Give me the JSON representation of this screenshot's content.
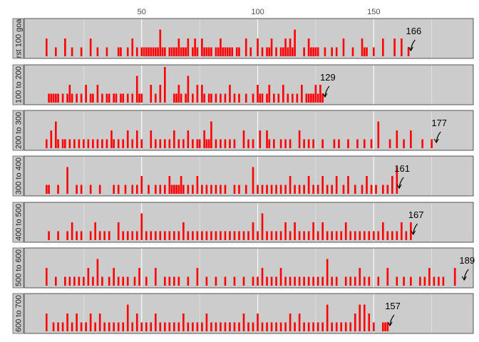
{
  "chart_data": {
    "type": "bar",
    "title": "",
    "xlabel": "",
    "ylabel": "",
    "x_range": [
      0,
      192
    ],
    "x_ticks": [
      {
        "value": 50,
        "label": "50"
      },
      {
        "value": 100,
        "label": "100"
      },
      {
        "value": 150,
        "label": "150"
      }
    ],
    "grid": true,
    "colors": {
      "bar": "#ff0000",
      "panel": "#cccccc",
      "grid": "#ffffff",
      "strip": "#cccccc",
      "arrow": "#000000"
    },
    "panels": [
      {
        "strip_label": "rst 100 goa",
        "annotation": {
          "label": "166",
          "x": 166
        },
        "x": [
          9,
          13,
          17,
          20,
          24,
          28,
          31,
          35,
          40,
          41,
          44,
          46,
          48,
          50,
          51,
          52,
          53,
          54,
          55,
          56,
          57,
          58,
          59,
          60,
          62,
          63,
          64,
          65,
          66,
          67,
          68,
          69,
          70,
          72,
          73,
          74,
          76,
          77,
          78,
          79,
          80,
          82,
          83,
          84,
          85,
          86,
          87,
          88,
          89,
          91,
          92,
          95,
          97,
          100,
          102,
          104,
          105,
          106,
          108,
          110,
          111,
          112,
          113,
          114,
          115,
          116,
          120,
          122,
          123,
          124,
          125,
          126,
          129,
          132,
          134,
          137,
          141,
          145,
          146,
          147,
          150,
          154,
          159,
          162,
          165
        ],
        "values": [
          4,
          2,
          4,
          2,
          2,
          4,
          2,
          2,
          2,
          2,
          2,
          4,
          2,
          2,
          2,
          2,
          2,
          2,
          2,
          2,
          2,
          6,
          2,
          2,
          2,
          2,
          2,
          2,
          4,
          2,
          2,
          2,
          4,
          2,
          4,
          2,
          4,
          2,
          2,
          2,
          2,
          2,
          2,
          4,
          2,
          2,
          2,
          2,
          2,
          2,
          2,
          4,
          2,
          4,
          2,
          2,
          2,
          4,
          2,
          2,
          2,
          4,
          2,
          4,
          2,
          6,
          2,
          4,
          2,
          2,
          2,
          2,
          2,
          2,
          2,
          4,
          2,
          4,
          2,
          2,
          2,
          4,
          4,
          4,
          2
        ]
      },
      {
        "strip_label": "100 to 200",
        "annotation": {
          "label": "129",
          "x": 129
        },
        "x": [
          10,
          11,
          12,
          13,
          14,
          16,
          18,
          19,
          20,
          22,
          24,
          26,
          28,
          29,
          31,
          33,
          35,
          36,
          38,
          39,
          41,
          42,
          44,
          46,
          48,
          49,
          50,
          54,
          56,
          58,
          60,
          64,
          65,
          66,
          67,
          69,
          70,
          72,
          74,
          76,
          77,
          79,
          80,
          82,
          84,
          86,
          88,
          90,
          92,
          95,
          98,
          100,
          101,
          102,
          104,
          105,
          107,
          109,
          111,
          113,
          115,
          117,
          119,
          121,
          122,
          123,
          124,
          125,
          126,
          127,
          128
        ],
        "values": [
          2,
          2,
          2,
          2,
          2,
          2,
          2,
          4,
          2,
          2,
          2,
          4,
          2,
          2,
          4,
          2,
          2,
          2,
          2,
          2,
          2,
          2,
          2,
          2,
          6,
          2,
          2,
          4,
          2,
          4,
          8,
          2,
          2,
          4,
          2,
          2,
          6,
          2,
          4,
          4,
          2,
          2,
          2,
          2,
          2,
          2,
          4,
          2,
          2,
          2,
          2,
          4,
          2,
          2,
          2,
          4,
          2,
          2,
          4,
          2,
          2,
          2,
          4,
          2,
          2,
          2,
          2,
          4,
          2,
          4,
          2
        ]
      },
      {
        "strip_label": "200 to 300",
        "annotation": {
          "label": "177",
          "x": 177
        },
        "x": [
          9,
          11,
          13,
          14,
          16,
          17,
          19,
          21,
          23,
          25,
          27,
          29,
          31,
          33,
          35,
          37,
          38,
          40,
          42,
          44,
          46,
          48,
          50,
          54,
          56,
          58,
          60,
          62,
          64,
          66,
          68,
          70,
          72,
          74,
          75,
          77,
          78,
          79,
          80,
          82,
          84,
          86,
          88,
          90,
          94,
          96,
          98,
          101,
          104,
          105,
          107,
          110,
          112,
          114,
          118,
          120,
          122,
          124,
          128,
          133,
          135,
          139,
          143,
          146,
          149,
          152,
          157,
          160,
          163,
          166,
          171,
          175
        ],
        "values": [
          2,
          4,
          6,
          2,
          2,
          2,
          2,
          2,
          2,
          2,
          2,
          2,
          2,
          2,
          2,
          4,
          2,
          2,
          2,
          4,
          2,
          4,
          2,
          4,
          2,
          2,
          2,
          2,
          4,
          2,
          2,
          4,
          2,
          2,
          2,
          4,
          2,
          2,
          6,
          2,
          2,
          2,
          2,
          2,
          4,
          2,
          2,
          4,
          4,
          2,
          2,
          2,
          2,
          2,
          4,
          2,
          2,
          2,
          2,
          2,
          2,
          2,
          2,
          2,
          2,
          6,
          2,
          4,
          2,
          4,
          2,
          2
        ]
      },
      {
        "strip_label": "300 to 400",
        "annotation": {
          "label": "161",
          "x": 161
        },
        "x": [
          9,
          10,
          14,
          18,
          22,
          24,
          28,
          32,
          38,
          40,
          43,
          46,
          48,
          50,
          53,
          56,
          58,
          60,
          62,
          63,
          64,
          65,
          66,
          67,
          68,
          70,
          72,
          74,
          76,
          78,
          80,
          82,
          84,
          86,
          90,
          92,
          95,
          98,
          100,
          102,
          104,
          106,
          108,
          110,
          112,
          114,
          116,
          118,
          120,
          122,
          124,
          126,
          128,
          130,
          132,
          134,
          137,
          139,
          142,
          145,
          147,
          149,
          151,
          154,
          156,
          158,
          160
        ],
        "values": [
          2,
          2,
          2,
          6,
          2,
          2,
          2,
          2,
          2,
          2,
          2,
          2,
          2,
          4,
          2,
          2,
          2,
          2,
          4,
          2,
          2,
          2,
          2,
          4,
          2,
          2,
          2,
          4,
          2,
          2,
          2,
          2,
          2,
          2,
          2,
          2,
          2,
          6,
          2,
          2,
          2,
          2,
          2,
          2,
          2,
          4,
          2,
          2,
          2,
          4,
          2,
          2,
          4,
          2,
          2,
          4,
          2,
          4,
          2,
          2,
          4,
          2,
          2,
          2,
          2,
          4,
          6
        ]
      },
      {
        "strip_label": "400 to 500",
        "annotation": {
          "label": "167",
          "x": 167
        },
        "x": [
          10,
          14,
          18,
          20,
          22,
          24,
          28,
          30,
          32,
          34,
          36,
          40,
          42,
          44,
          46,
          48,
          50,
          52,
          54,
          56,
          58,
          60,
          62,
          64,
          66,
          68,
          70,
          72,
          74,
          76,
          78,
          80,
          82,
          84,
          86,
          88,
          90,
          92,
          94,
          96,
          98,
          100,
          102,
          104,
          106,
          108,
          110,
          112,
          114,
          116,
          118,
          120,
          122,
          124,
          126,
          128,
          130,
          132,
          134,
          136,
          138,
          140,
          142,
          144,
          146,
          148,
          150,
          152,
          154,
          156,
          158,
          160,
          162,
          164,
          166
        ],
        "values": [
          2,
          2,
          2,
          4,
          2,
          2,
          2,
          4,
          2,
          2,
          2,
          4,
          2,
          2,
          2,
          2,
          6,
          2,
          2,
          2,
          2,
          2,
          2,
          2,
          2,
          4,
          2,
          2,
          2,
          2,
          2,
          2,
          2,
          2,
          2,
          2,
          2,
          2,
          2,
          2,
          4,
          2,
          6,
          2,
          2,
          2,
          2,
          4,
          2,
          4,
          2,
          2,
          2,
          4,
          2,
          4,
          2,
          2,
          2,
          2,
          4,
          2,
          2,
          2,
          2,
          2,
          2,
          2,
          4,
          2,
          2,
          2,
          4,
          2,
          4
        ]
      },
      {
        "strip_label": "500 to 600",
        "annotation": {
          "label": "189",
          "x": 189
        },
        "x": [
          9,
          13,
          17,
          19,
          21,
          23,
          25,
          27,
          29,
          31,
          33,
          36,
          38,
          40,
          42,
          44,
          47,
          49,
          52,
          56,
          60,
          62,
          64,
          66,
          70,
          74,
          78,
          82,
          86,
          90,
          94,
          98,
          100,
          102,
          104,
          106,
          108,
          110,
          112,
          114,
          116,
          118,
          120,
          122,
          124,
          126,
          128,
          130,
          132,
          134,
          138,
          140,
          142,
          144,
          146,
          148,
          152,
          156,
          160,
          163,
          166,
          170,
          172,
          174,
          176,
          178,
          180,
          185
        ],
        "values": [
          4,
          2,
          2,
          2,
          2,
          2,
          2,
          4,
          2,
          6,
          2,
          2,
          4,
          2,
          2,
          2,
          2,
          4,
          2,
          4,
          2,
          2,
          2,
          2,
          2,
          4,
          2,
          2,
          2,
          2,
          2,
          2,
          2,
          4,
          2,
          2,
          2,
          4,
          2,
          2,
          2,
          2,
          2,
          2,
          2,
          2,
          2,
          6,
          2,
          2,
          2,
          2,
          2,
          4,
          2,
          2,
          2,
          4,
          2,
          2,
          2,
          2,
          2,
          4,
          2,
          2,
          2,
          4
        ]
      },
      {
        "strip_label": "600 to 700",
        "annotation": {
          "label": "157",
          "x": 157
        },
        "x": [
          9,
          12,
          14,
          16,
          18,
          20,
          22,
          24,
          26,
          28,
          30,
          32,
          34,
          36,
          38,
          40,
          42,
          44,
          46,
          48,
          50,
          52,
          54,
          56,
          58,
          60,
          62,
          64,
          66,
          68,
          70,
          72,
          74,
          76,
          78,
          80,
          82,
          84,
          86,
          88,
          90,
          92,
          94,
          96,
          98,
          100,
          102,
          104,
          106,
          108,
          110,
          112,
          114,
          116,
          118,
          120,
          122,
          124,
          126,
          128,
          130,
          132,
          134,
          136,
          138,
          140,
          142,
          144,
          146,
          148,
          150,
          154,
          155,
          156
        ],
        "values": [
          4,
          2,
          2,
          2,
          4,
          2,
          4,
          2,
          2,
          4,
          2,
          4,
          2,
          2,
          2,
          2,
          2,
          6,
          2,
          4,
          2,
          2,
          2,
          4,
          2,
          2,
          2,
          2,
          2,
          4,
          2,
          2,
          2,
          2,
          4,
          2,
          2,
          2,
          2,
          2,
          2,
          2,
          4,
          2,
          2,
          4,
          2,
          2,
          2,
          2,
          2,
          2,
          4,
          2,
          4,
          2,
          2,
          2,
          2,
          2,
          6,
          2,
          2,
          2,
          2,
          2,
          4,
          6,
          6,
          4,
          2,
          2,
          2,
          2
        ]
      }
    ]
  }
}
